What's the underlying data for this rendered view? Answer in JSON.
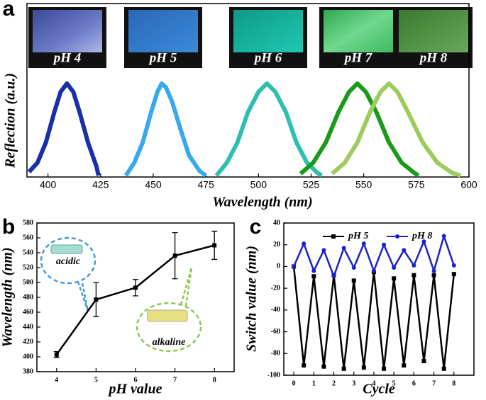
{
  "chart_data": [
    {
      "type": "line",
      "label": "a",
      "xlabel": "Wavelength (nm)",
      "ylabel": "Reflection (a.u.)",
      "xlim": [
        390,
        600
      ],
      "xticks": [
        400,
        425,
        450,
        475,
        500,
        525,
        550,
        575,
        600
      ],
      "ylim": [
        0,
        1
      ],
      "series": [
        {
          "name": "pH 4",
          "color": "#1a2fa8",
          "x": [
            391,
            395,
            399,
            403,
            406,
            409,
            412,
            415,
            419,
            423,
            424
          ],
          "values": [
            0.04,
            0.14,
            0.36,
            0.69,
            0.91,
            1,
            0.91,
            0.69,
            0.36,
            0.1,
            0
          ]
        },
        {
          "name": "pH 5",
          "color": "#3aa8ee",
          "x": [
            437,
            441,
            445,
            449,
            452,
            454,
            456,
            459,
            463,
            467,
            472,
            475
          ],
          "values": [
            0,
            0.14,
            0.36,
            0.69,
            0.91,
            1,
            0.96,
            0.8,
            0.5,
            0.22,
            0.05,
            0
          ]
        },
        {
          "name": "pH 6",
          "color": "#2ebfb0",
          "x": [
            480,
            485,
            490,
            495,
            500,
            504,
            508,
            513,
            518,
            523,
            528,
            530
          ],
          "values": [
            0,
            0.14,
            0.36,
            0.69,
            0.91,
            1,
            0.91,
            0.69,
            0.36,
            0.14,
            0.03,
            0
          ]
        },
        {
          "name": "pH 7",
          "color": "#1a9a1a",
          "x": [
            520,
            526,
            532,
            538,
            543,
            547,
            551,
            556,
            562,
            568,
            574,
            576
          ],
          "values": [
            0.02,
            0.14,
            0.36,
            0.69,
            0.91,
            1,
            0.91,
            0.69,
            0.36,
            0.14,
            0.03,
            0
          ]
        },
        {
          "name": "pH 8",
          "color": "#9ccc5c",
          "x": [
            535,
            541,
            547,
            553,
            558,
            562,
            566,
            571,
            578,
            585,
            592,
            596
          ],
          "values": [
            0.02,
            0.14,
            0.36,
            0.69,
            0.91,
            1,
            0.91,
            0.69,
            0.36,
            0.14,
            0.03,
            0
          ]
        }
      ]
    },
    {
      "type": "line",
      "label": "b",
      "xlabel": "pH value",
      "ylabel": "Wavelength (nm)",
      "xlim": [
        3.5,
        8.5
      ],
      "xticks": [
        4,
        5,
        6,
        7,
        8
      ],
      "ylim": [
        380,
        580
      ],
      "yticks": [
        380,
        400,
        420,
        440,
        460,
        480,
        500,
        520,
        540,
        560,
        580
      ],
      "x": [
        4,
        5,
        6,
        7,
        8
      ],
      "values": [
        403,
        477,
        493,
        536,
        550
      ],
      "errors": [
        4,
        23,
        11,
        31,
        19
      ],
      "color": "#000000",
      "marker": "square",
      "annotations": [
        "acidic",
        "alkaline"
      ]
    },
    {
      "type": "line",
      "label": "c",
      "xlabel": "Cycle",
      "ylabel": "Switch value (nm)",
      "xlim": [
        -0.5,
        9
      ],
      "xticks": [
        0,
        1,
        2,
        3,
        4,
        5,
        6,
        7,
        8
      ],
      "ylim": [
        -100,
        40
      ],
      "yticks": [
        -100,
        -80,
        -60,
        -40,
        -20,
        0,
        20,
        40
      ],
      "x": [
        0,
        0.5,
        1,
        1.5,
        2,
        2.5,
        3,
        3.5,
        4,
        4.5,
        5,
        5.5,
        6,
        6.5,
        7,
        7.5,
        8
      ],
      "series": [
        {
          "name": "pH 5",
          "color": "#000000",
          "marker": "square",
          "values": [
            0,
            -91,
            -9,
            -92,
            -8,
            -94,
            -13,
            -93,
            -5,
            -94,
            -11,
            -91,
            -8,
            -87,
            -8,
            -94,
            -7
          ]
        },
        {
          "name": "pH 8",
          "color": "#1a22c8",
          "marker": "circle",
          "values": [
            0,
            21,
            -4,
            15,
            -9,
            17,
            -1,
            21,
            -4,
            20,
            -1,
            15,
            1,
            23,
            -4,
            28,
            1
          ]
        }
      ]
    }
  ]
}
